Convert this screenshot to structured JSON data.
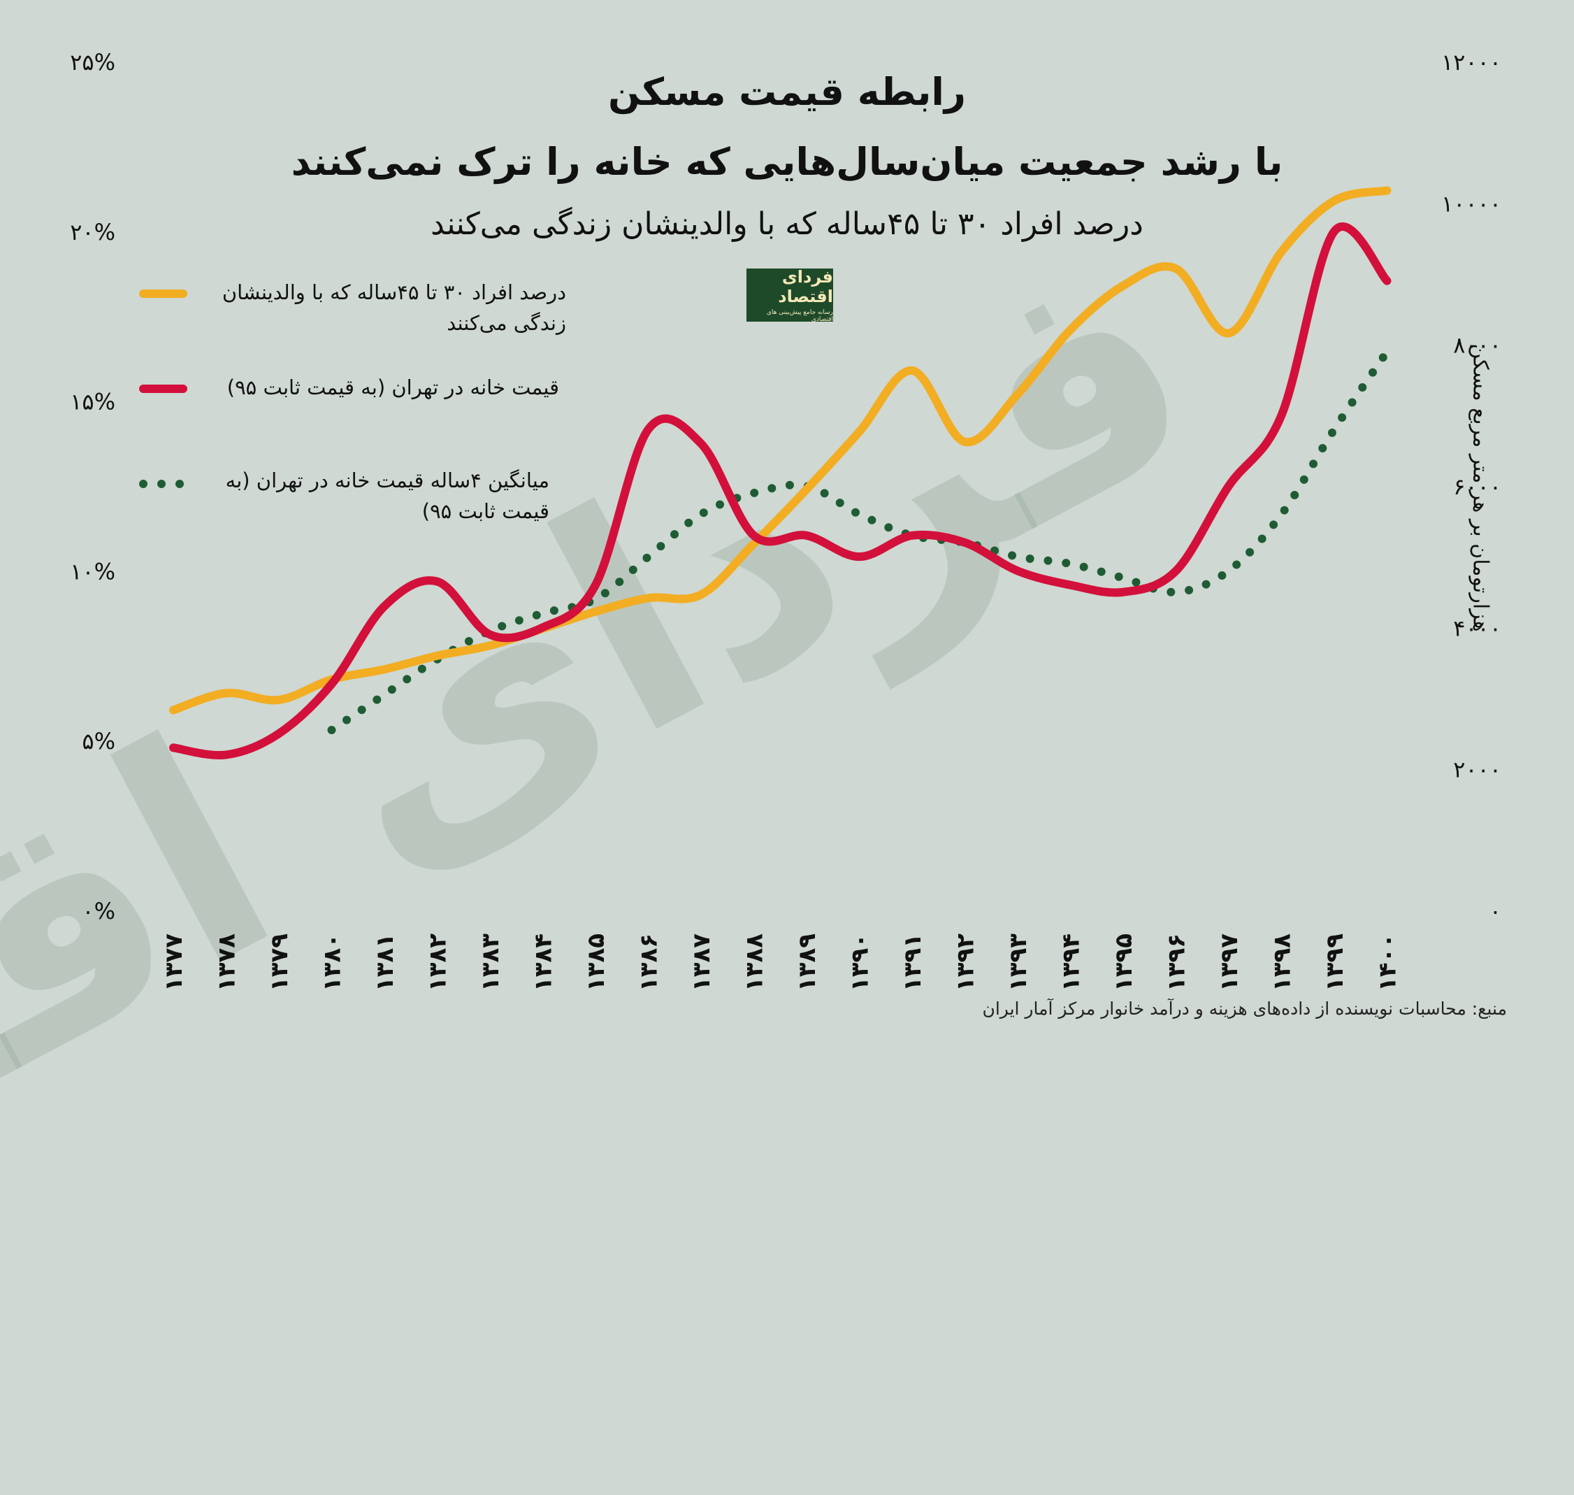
{
  "title": {
    "line1": "رابطه قیمت مسکن",
    "line2": "با رشد جمعیت میان‌سال‌هایی که خانه را ترک نمی‌کنند",
    "line3": "درصد افراد ۳۰ تا ۴۵ساله که با والدینشان زندگی می‌کنند"
  },
  "logo": {
    "text": "فردای اقتصاد",
    "subtext": "رسانه جامع پیش‌بینی های اقتصادی"
  },
  "watermark": "فردای اقتصاد",
  "source": "منبع: محاسبات نویسنده از داده‌های هزینه و درآمد خانوار مرکز آمار ایران",
  "colors": {
    "background": "#cfd8d2",
    "orange": "#f2ad22",
    "red": "#d3103b",
    "green": "#1f5c34"
  },
  "legend": [
    {
      "icon": "orange-line",
      "line1": "درصد افراد ۳۰ تا ۴۵ساله که با والدینشان",
      "line2": "زندگی می‌کنند"
    },
    {
      "icon": "red-line",
      "line1": "قیمت خانه در تهران (به قیمت ثابت ۹۵)",
      "line2": ""
    },
    {
      "icon": "green-dotted-line",
      "line1": "میانگین ۴ساله قیمت خانه در تهران (به",
      "line2": "قیمت ثابت ۹۵)"
    }
  ],
  "chart_data": {
    "type": "line",
    "categories": [
      "۱۳۷۷",
      "۱۳۷۸",
      "۱۳۷۹",
      "۱۳۸۰",
      "۱۳۸۱",
      "۱۳۸۲",
      "۱۳۸۳",
      "۱۳۸۴",
      "۱۳۸۵",
      "۱۳۸۶",
      "۱۳۸۷",
      "۱۳۸۸",
      "۱۳۸۹",
      "۱۳۹۰",
      "۱۳۹۱",
      "۱۳۹۲",
      "۱۳۹۳",
      "۱۳۹۴",
      "۱۳۹۵",
      "۱۳۹۶",
      "۱۳۹۷",
      "۱۳۹۸",
      "۱۳۹۹",
      "۱۴۰۰"
    ],
    "y_left": {
      "ylim": [
        0,
        25
      ],
      "ticks": [
        "۰%",
        "۵%",
        "۱۰%",
        "۱۵%",
        "۲۰%",
        "۲۵%"
      ],
      "label": ""
    },
    "y_right": {
      "ylim": [
        0,
        12000
      ],
      "ticks": [
        "۰",
        "۲۰۰۰",
        "۴۰۰۰",
        "۶۰۰۰",
        "۸۰۰۰",
        "۱۰۰۰۰",
        "۱۲۰۰۰"
      ],
      "label": "هزارتومان بر هر متر مربع مسکن"
    },
    "legend_position": "top-left",
    "grid": false,
    "series": [
      {
        "name": "درصد افراد ۳۰ تا ۴۵ساله که با والدینشان زندگی می‌کنند",
        "axis": "left",
        "style": "solid",
        "color": "#f2ad22",
        "values": [
          5.9,
          6.4,
          6.2,
          6.8,
          7.1,
          7.5,
          7.8,
          8.3,
          8.8,
          9.2,
          9.3,
          10.8,
          12.4,
          14.1,
          15.9,
          13.8,
          15.2,
          17.1,
          18.4,
          18.9,
          17.0,
          19.4,
          20.9,
          21.2
        ]
      },
      {
        "name": "قیمت خانه در تهران (به قیمت ثابت ۹۵)",
        "axis": "right",
        "style": "solid",
        "color": "#d3103b",
        "values": [
          2300,
          2200,
          2500,
          3200,
          4300,
          4650,
          3900,
          4000,
          4600,
          6800,
          6600,
          5300,
          5300,
          5000,
          5300,
          5200,
          4800,
          4600,
          4500,
          4800,
          6000,
          7000,
          9600,
          8900
        ]
      },
      {
        "name": "میانگین ۴ساله قیمت خانه در تهران (به قیمت ثابت ۹۵)",
        "axis": "right",
        "style": "dotted",
        "color": "#1f5c34",
        "values": [
          null,
          null,
          null,
          2550,
          3050,
          3550,
          3950,
          4200,
          4400,
          5000,
          5600,
          5900,
          6000,
          5600,
          5300,
          5200,
          5000,
          4900,
          4700,
          4500,
          4800,
          5600,
          6800,
          7900
        ]
      }
    ]
  }
}
